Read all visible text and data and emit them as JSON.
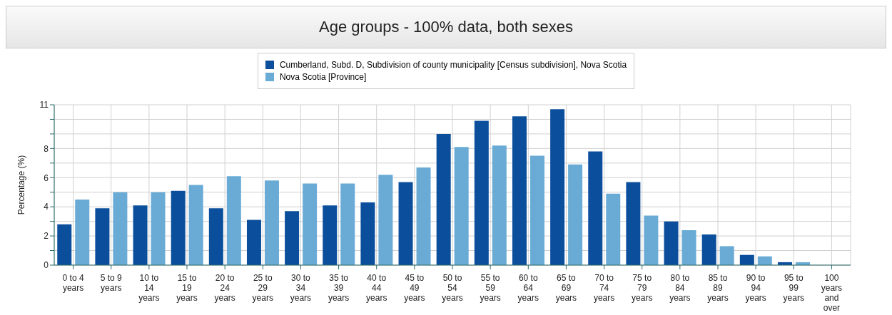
{
  "chart_data": {
    "type": "bar",
    "title": "Age groups - 100% data, both sexes",
    "ylabel": "Percentage (%)",
    "categories": [
      "0 to 4 years",
      "5 to 9 years",
      "10 to 14 years",
      "15 to 19 years",
      "20 to 24 years",
      "25 to 29 years",
      "30 to 34 years",
      "35 to 39 years",
      "40 to 44 years",
      "45 to 49 years",
      "50 to 54 years",
      "55 to 59 years",
      "60 to 64 years",
      "65 to 69 years",
      "70 to 74 years",
      "75 to 79 years",
      "80 to 84 years",
      "85 to 89 years",
      "90 to 94 years",
      "95 to 99 years",
      "100 years and over"
    ],
    "series": [
      {
        "name": "Cumberland, Subd. D, Subdivision of county municipality [Census subdivision], Nova Scotia",
        "color": "#0b4f9c",
        "values": [
          2.8,
          3.9,
          4.1,
          5.1,
          3.9,
          3.1,
          3.7,
          4.1,
          4.3,
          5.7,
          9.0,
          9.9,
          10.2,
          10.7,
          7.8,
          5.7,
          3.0,
          2.1,
          0.7,
          0.2,
          0
        ]
      },
      {
        "name": "Nova Scotia [Province]",
        "color": "#6aabd6",
        "values": [
          4.5,
          5.0,
          5.0,
          5.5,
          6.1,
          5.8,
          5.6,
          5.6,
          6.2,
          6.7,
          8.1,
          8.2,
          7.5,
          6.9,
          4.9,
          3.4,
          2.4,
          1.3,
          0.6,
          0.2,
          0
        ]
      }
    ],
    "ylim": [
      0,
      11
    ],
    "yticks": [
      0,
      {
        "value": 1,
        "label": null
      },
      2,
      {
        "value": 3,
        "label": null
      },
      4,
      {
        "value": 5,
        "label": null
      },
      6,
      {
        "value": 7,
        "label": null
      },
      8,
      {
        "value": 9,
        "label": null
      },
      {
        "value": 10,
        "label": null
      },
      11
    ],
    "grid": true,
    "legend": "top"
  }
}
